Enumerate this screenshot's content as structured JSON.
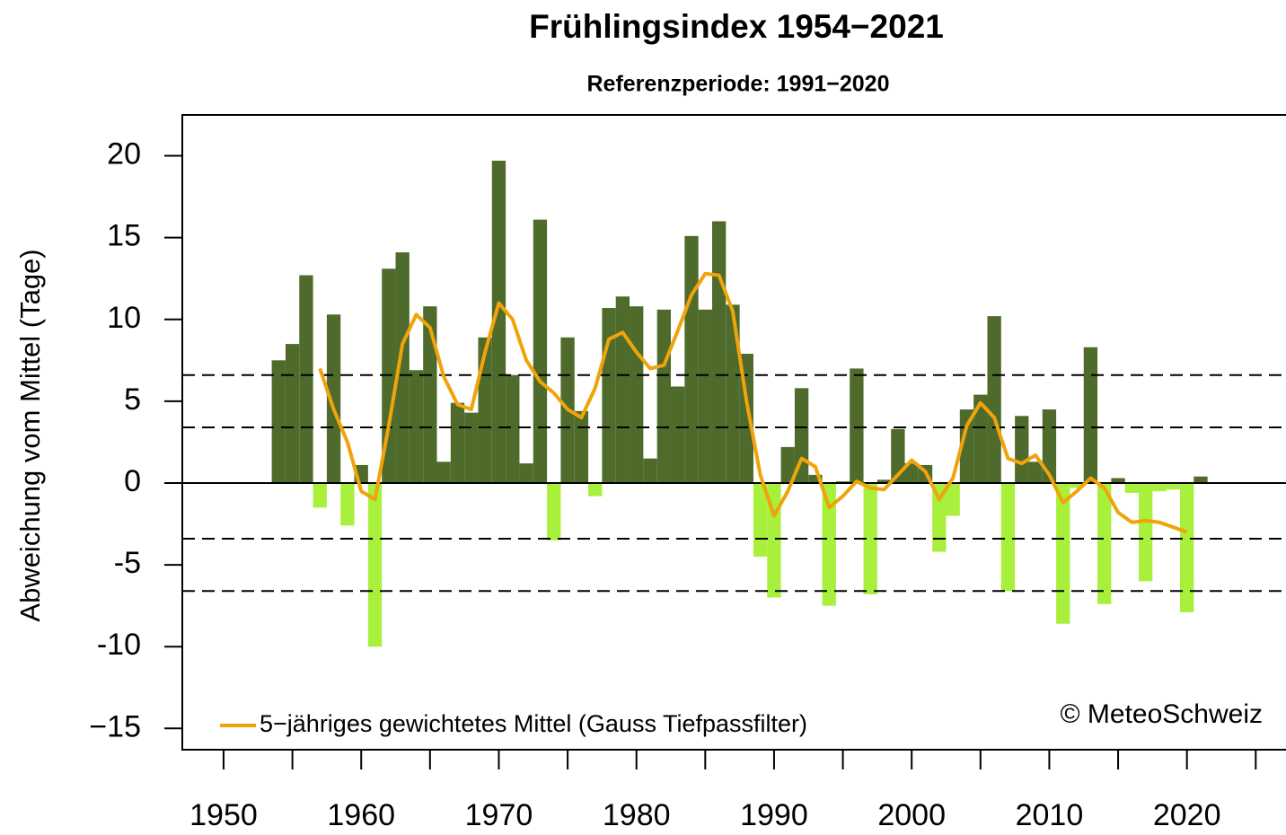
{
  "chart_data": {
    "type": "bar",
    "title": "Frühlingsindex 1954−2021",
    "subtitle": "Referenzperiode: 1991−2020",
    "y_label": "Abweichung vom Mittel (Tage)",
    "annotation": "© MeteoSchweiz",
    "x": [
      1954,
      1955,
      1956,
      1957,
      1958,
      1959,
      1960,
      1961,
      1962,
      1963,
      1964,
      1965,
      1966,
      1967,
      1968,
      1969,
      1970,
      1971,
      1972,
      1973,
      1974,
      1975,
      1976,
      1977,
      1978,
      1979,
      1980,
      1981,
      1982,
      1983,
      1984,
      1985,
      1986,
      1987,
      1988,
      1989,
      1990,
      1991,
      1992,
      1993,
      1994,
      1995,
      1996,
      1997,
      1998,
      1999,
      2000,
      2001,
      2002,
      2003,
      2004,
      2005,
      2006,
      2007,
      2008,
      2009,
      2010,
      2011,
      2012,
      2013,
      2014,
      2015,
      2016,
      2017,
      2018,
      2019,
      2020,
      2021
    ],
    "values": [
      7.5,
      8.5,
      12.7,
      -1.5,
      10.3,
      -2.6,
      1.1,
      -10,
      13.1,
      14.1,
      6.9,
      10.8,
      1.3,
      4.9,
      4.3,
      8.9,
      19.7,
      6.6,
      1.2,
      16.1,
      -3.5,
      8.9,
      4.4,
      -0.8,
      10.7,
      11.4,
      10.8,
      1.5,
      10.6,
      5.9,
      15.1,
      10.6,
      16.0,
      10.9,
      7.9,
      -4.5,
      -7.0,
      2.2,
      5.8,
      0.5,
      -7.5,
      0.1,
      7.0,
      -6.8,
      0.2,
      3.3,
      1.2,
      1.1,
      -4.2,
      -2.0,
      4.5,
      5.4,
      10.2,
      -6.6,
      4.1,
      1.3,
      4.5,
      -8.6,
      -0.3,
      8.3,
      -7.4,
      0.3,
      -0.6,
      -6.0,
      -0.5,
      -0.4,
      -7.9,
      0.4
    ],
    "positive_color": "#4e6b2b",
    "negative_color": "#a8f03c",
    "smooth": {
      "name": "5−jähriges gewichtetes Mittel (Gauss Tiefpassfilter)",
      "color": "#f0a30a",
      "x": [
        1957,
        1958,
        1959,
        1960,
        1961,
        1962,
        1963,
        1964,
        1965,
        1966,
        1967,
        1968,
        1969,
        1970,
        1971,
        1972,
        1973,
        1974,
        1975,
        1976,
        1977,
        1978,
        1979,
        1980,
        1981,
        1982,
        1983,
        1984,
        1985,
        1986,
        1987,
        1988,
        1989,
        1990,
        1991,
        1992,
        1993,
        1994,
        1995,
        1996,
        1997,
        1998,
        1999,
        2000,
        2001,
        2002,
        2003,
        2004,
        2005,
        2006,
        2007,
        2008,
        2009,
        2010,
        2011,
        2012,
        2013,
        2014,
        2015,
        2016,
        2017,
        2018,
        2019,
        2020
      ],
      "values": [
        7.0,
        4.5,
        2.5,
        -0.5,
        -1.0,
        3.5,
        8.5,
        10.3,
        9.5,
        6.5,
        4.8,
        4.5,
        8.0,
        11.0,
        10.0,
        7.5,
        6.2,
        5.5,
        4.5,
        4.0,
        5.8,
        8.8,
        9.2,
        8.0,
        7.0,
        7.2,
        9.3,
        11.5,
        12.8,
        12.7,
        10.5,
        5.0,
        0.5,
        -2.0,
        -0.5,
        1.5,
        1.0,
        -1.5,
        -0.8,
        0.1,
        -0.3,
        -0.4,
        0.5,
        1.4,
        0.7,
        -1.0,
        0.3,
        3.5,
        4.9,
        4.0,
        1.5,
        1.2,
        1.7,
        0.5,
        -1.2,
        -0.5,
        0.3,
        -0.3,
        -1.8,
        -2.4,
        -2.3,
        -2.4,
        -2.7,
        -3.0
      ]
    },
    "hlines": [
      6.6,
      3.4,
      -3.4,
      -6.6
    ],
    "xlim": [
      1947,
      2027.2
    ],
    "ylim": [
      -16.3,
      22.5
    ],
    "xticks": [
      1950,
      1960,
      1970,
      1980,
      1990,
      2000,
      2010,
      2020
    ],
    "xminor_ticks": [
      1955,
      1965,
      1975,
      1985,
      1995,
      2005,
      2015,
      2025
    ],
    "yticks": [
      {
        "value": -15,
        "label": "−15"
      },
      -10,
      -5,
      0,
      5,
      10,
      15,
      20
    ]
  }
}
